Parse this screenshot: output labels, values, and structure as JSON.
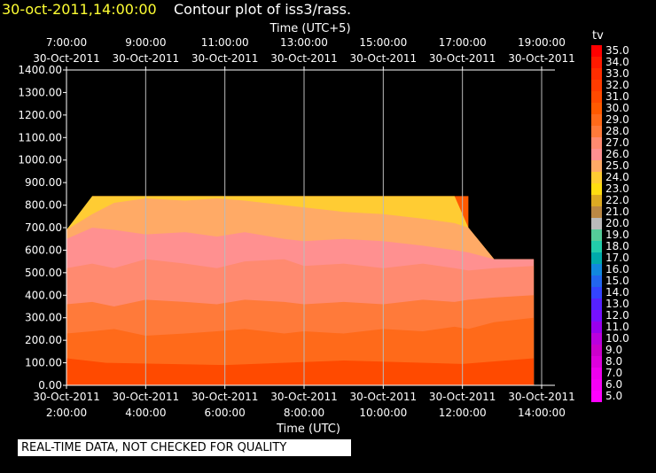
{
  "header": {
    "timestamp": "30-oct-2011,14:00:00",
    "title": "Contour plot of iss3/rass."
  },
  "notice": "REAL-TIME DATA, NOT CHECKED FOR QUALITY",
  "colors": {
    "background": "#000000",
    "timestamp": "#ffff33",
    "grid": "#bbbbbb"
  },
  "chart_data": {
    "type": "heatmap",
    "title": "Contour plot of iss3/rass.",
    "xlabel_top": "Time (UTC+5)",
    "xlabel_bottom": "Time (UTC)",
    "legend_title": "tv",
    "ylim": [
      0,
      1400
    ],
    "y_ticks": [
      "0.00",
      "100.00",
      "200.00",
      "300.00",
      "400.00",
      "500.00",
      "600.00",
      "700.00",
      "800.00",
      "900.00",
      "1000.00",
      "1100.00",
      "1200.00",
      "1300.00",
      "1400.00"
    ],
    "x_ticks_bottom": [
      {
        "date": "30-Oct-2011",
        "time": "2:00:00"
      },
      {
        "date": "30-Oct-2011",
        "time": "4:00:00"
      },
      {
        "date": "30-Oct-2011",
        "time": "6:00:00"
      },
      {
        "date": "30-Oct-2011",
        "time": "8:00:00"
      },
      {
        "date": "30-Oct-2011",
        "time": "10:00:00"
      },
      {
        "date": "30-Oct-2011",
        "time": "12:00:00"
      },
      {
        "date": "30-Oct-2011",
        "time": "14:00:00"
      }
    ],
    "x_ticks_top": [
      {
        "time": "7:00:00",
        "date": "30-Oct-2011"
      },
      {
        "time": "9:00:00",
        "date": "30-Oct-2011"
      },
      {
        "time": "11:00:00",
        "date": "30-Oct-2011"
      },
      {
        "time": "13:00:00",
        "date": "30-Oct-2011"
      },
      {
        "time": "15:00:00",
        "date": "30-Oct-2011"
      },
      {
        "time": "17:00:00",
        "date": "30-Oct-2011"
      },
      {
        "time": "19:00:00",
        "date": "30-Oct-2011"
      }
    ],
    "xlim_hours_utc": [
      2,
      14
    ],
    "colorbar": [
      {
        "value": "35.0",
        "color": "#ff0000"
      },
      {
        "value": "34.0",
        "color": "#ff1a00"
      },
      {
        "value": "33.0",
        "color": "#ff2d00"
      },
      {
        "value": "32.0",
        "color": "#ff3c00"
      },
      {
        "value": "31.0",
        "color": "#ff4a00"
      },
      {
        "value": "30.0",
        "color": "#ff5a00"
      },
      {
        "value": "29.0",
        "color": "#ff6a1a"
      },
      {
        "value": "28.0",
        "color": "#ff7a3a"
      },
      {
        "value": "27.0",
        "color": "#ff8a70"
      },
      {
        "value": "26.0",
        "color": "#ff9090"
      },
      {
        "value": "25.0",
        "color": "#ffaa66"
      },
      {
        "value": "24.0",
        "color": "#ffcc33"
      },
      {
        "value": "23.0",
        "color": "#ffdd11"
      },
      {
        "value": "22.0",
        "color": "#ddaa22"
      },
      {
        "value": "21.0",
        "color": "#bb8844"
      },
      {
        "value": "20.0",
        "color": "#bbbbbb"
      },
      {
        "value": "19.0",
        "color": "#55cc99"
      },
      {
        "value": "18.0",
        "color": "#22ccaa"
      },
      {
        "value": "17.0",
        "color": "#00aaaa"
      },
      {
        "value": "16.0",
        "color": "#1188dd"
      },
      {
        "value": "15.0",
        "color": "#2266ee"
      },
      {
        "value": "14.0",
        "color": "#3344ff"
      },
      {
        "value": "13.0",
        "color": "#5522ff"
      },
      {
        "value": "12.0",
        "color": "#7711ff"
      },
      {
        "value": "11.0",
        "color": "#9900ee"
      },
      {
        "value": "10.0",
        "color": "#bb00dd"
      },
      {
        "value": "9.0",
        "color": "#cc00cc"
      },
      {
        "value": "8.0",
        "color": "#dd00dd"
      },
      {
        "value": "7.0",
        "color": "#ee00ee"
      },
      {
        "value": "6.0",
        "color": "#f500f5"
      },
      {
        "value": "5.0",
        "color": "#ff00ff"
      }
    ],
    "data_extent": {
      "x_hours_utc": [
        2,
        2.65,
        2.65,
        12.15,
        12.15,
        12.8,
        13.8,
        13.8,
        2
      ],
      "top_height": [
        690,
        690,
        840,
        840,
        700,
        560,
        560,
        0,
        0
      ]
    },
    "layers": [
      {
        "tv": "29.0",
        "upper_height": [
          230,
          240,
          250,
          220,
          230,
          240,
          250,
          230,
          240,
          230,
          250,
          240,
          260,
          250,
          280,
          300
        ]
      },
      {
        "tv": "28.0",
        "upper_height": [
          360,
          370,
          350,
          380,
          370,
          360,
          380,
          370,
          360,
          370,
          360,
          380,
          370,
          380,
          390,
          400
        ]
      },
      {
        "tv": "27.0",
        "upper_height": [
          520,
          540,
          520,
          560,
          540,
          520,
          550,
          560,
          530,
          540,
          520,
          540,
          520,
          510,
          520,
          530
        ]
      },
      {
        "tv": "26.0",
        "upper_height": [
          650,
          700,
          690,
          670,
          680,
          660,
          680,
          650,
          640,
          650,
          640,
          620,
          600,
          590,
          560,
          560
        ]
      },
      {
        "tv": "25.0",
        "upper_height": [
          690,
          760,
          810,
          830,
          820,
          830,
          820,
          800,
          790,
          770,
          760,
          740,
          720,
          700,
          560,
          560
        ]
      },
      {
        "tv": "24.0",
        "upper_height": [
          690,
          840,
          840,
          840,
          840,
          840,
          840,
          840,
          840,
          840,
          840,
          840,
          840,
          700,
          560,
          560
        ]
      }
    ],
    "layer_x_hours_utc": [
      2,
      2.65,
      3.2,
      4,
      5,
      5.8,
      6.5,
      7.5,
      8,
      9,
      10,
      11,
      11.8,
      12.15,
      12.8,
      13.8
    ]
  }
}
